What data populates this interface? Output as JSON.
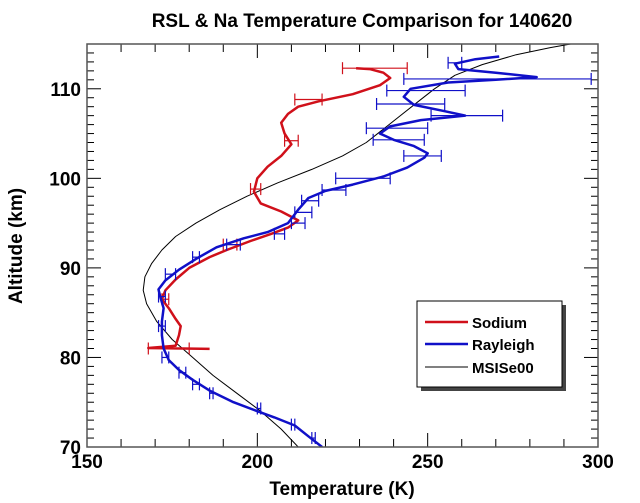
{
  "chart_data": {
    "type": "line",
    "title": "RSL & Na Temperature Comparison for 140620",
    "xlabel": "Temperature (K)",
    "ylabel": "Altitude (km)",
    "xlim": [
      150,
      300
    ],
    "ylim": [
      70,
      115
    ],
    "xticks": [
      150,
      200,
      250,
      300
    ],
    "xtick_labels": [
      "150",
      "200",
      "250",
      "300"
    ],
    "yticks": [
      70,
      80,
      90,
      100,
      110
    ],
    "ytick_labels": [
      "70",
      "80",
      "90",
      "100",
      "110"
    ],
    "x_minor_step": 10,
    "y_minor_step": 1,
    "grid": false,
    "legend": {
      "position": "bottom-right",
      "entries": [
        "Sodium",
        "Rayleigh",
        "MSISe00"
      ]
    },
    "series": [
      {
        "name": "Sodium",
        "color": "#d0101a",
        "points": [
          [
            186,
            80.95
          ],
          [
            178,
            81.0
          ],
          [
            168,
            81.05
          ],
          [
            176,
            81.3
          ],
          [
            177,
            82.5
          ],
          [
            177.5,
            83.5
          ],
          [
            176,
            84.3
          ],
          [
            174,
            85.5
          ],
          [
            172,
            86.5
          ],
          [
            173,
            87.5
          ],
          [
            176,
            88.7
          ],
          [
            180,
            90.0
          ],
          [
            186,
            91.2
          ],
          [
            191,
            92.0
          ],
          [
            198,
            93.0
          ],
          [
            204,
            93.8
          ],
          [
            209,
            94.5
          ],
          [
            212,
            95.3
          ],
          [
            207,
            96.3
          ],
          [
            201,
            97.2
          ],
          [
            199,
            98.5
          ],
          [
            200,
            100.0
          ],
          [
            203,
            101.3
          ],
          [
            207,
            102.5
          ],
          [
            210,
            103.8
          ],
          [
            208,
            105.0
          ],
          [
            207,
            106.2
          ],
          [
            209,
            107.2
          ],
          [
            212,
            108.0
          ],
          [
            218,
            108.6
          ],
          [
            228,
            109.4
          ],
          [
            236,
            110.4
          ],
          [
            239,
            111.2
          ],
          [
            237,
            111.8
          ],
          [
            233,
            112.2
          ],
          [
            229,
            112.3
          ]
        ],
        "error_bars": [
          {
            "alt": 112.3,
            "lo": 225,
            "hi": 244
          },
          {
            "alt": 108.8,
            "lo": 211,
            "hi": 219
          },
          {
            "alt": 104.2,
            "lo": 208,
            "hi": 212
          },
          {
            "alt": 98.8,
            "lo": 198,
            "hi": 201
          },
          {
            "alt": 92.6,
            "lo": 190,
            "hi": 194
          },
          {
            "alt": 86.5,
            "lo": 172,
            "hi": 174
          },
          {
            "alt": 81.0,
            "lo": 168,
            "hi": 180
          }
        ]
      },
      {
        "name": "Rayleigh",
        "color": "#1010c8",
        "points": [
          [
            219,
            70.0
          ],
          [
            215,
            71.2
          ],
          [
            211,
            72.4
          ],
          [
            205,
            73.3
          ],
          [
            200,
            74.0
          ],
          [
            193,
            75.0
          ],
          [
            186,
            76.3
          ],
          [
            181,
            77.5
          ],
          [
            177,
            78.6
          ],
          [
            174,
            79.7
          ],
          [
            172.5,
            81.0
          ],
          [
            172,
            82.5
          ],
          [
            172,
            84.0
          ],
          [
            172.5,
            85.5
          ],
          [
            171.5,
            86.8
          ],
          [
            171,
            87.6
          ],
          [
            173,
            88.6
          ],
          [
            177,
            89.8
          ],
          [
            182,
            91.0
          ],
          [
            188,
            92.3
          ],
          [
            196,
            93.3
          ],
          [
            203,
            94.0
          ],
          [
            209,
            95.0
          ],
          [
            212,
            96.5
          ],
          [
            215,
            97.8
          ],
          [
            220,
            98.6
          ],
          [
            228,
            99.3
          ],
          [
            237,
            100.2
          ],
          [
            244,
            101.2
          ],
          [
            249,
            102.3
          ],
          [
            250,
            102.8
          ],
          [
            246,
            103.6
          ],
          [
            240,
            104.3
          ],
          [
            236,
            105.0
          ],
          [
            239,
            105.8
          ],
          [
            248,
            106.5
          ],
          [
            261,
            107.0
          ],
          [
            255,
            107.5
          ],
          [
            246,
            108.2
          ],
          [
            243,
            109.1
          ],
          [
            245,
            110.0
          ],
          [
            256,
            110.7
          ],
          [
            270,
            111.0
          ],
          [
            282,
            111.3
          ],
          [
            270,
            111.8
          ],
          [
            259,
            112.2
          ],
          [
            258,
            112.8
          ],
          [
            264,
            113.3
          ],
          [
            271,
            113.6
          ]
        ],
        "error_bars": [
          {
            "alt": 111.1,
            "lo": 243,
            "hi": 298
          },
          {
            "alt": 112.9,
            "lo": 256,
            "hi": 260
          },
          {
            "alt": 109.8,
            "lo": 238,
            "hi": 261
          },
          {
            "alt": 108.3,
            "lo": 235,
            "hi": 255
          },
          {
            "alt": 107.0,
            "lo": 251,
            "hi": 272
          },
          {
            "alt": 105.6,
            "lo": 232,
            "hi": 250
          },
          {
            "alt": 104.3,
            "lo": 234,
            "hi": 249
          },
          {
            "alt": 102.5,
            "lo": 243,
            "hi": 254
          },
          {
            "alt": 100.0,
            "lo": 223,
            "hi": 239
          },
          {
            "alt": 98.7,
            "lo": 219,
            "hi": 226
          },
          {
            "alt": 97.5,
            "lo": 213,
            "hi": 218
          },
          {
            "alt": 96.2,
            "lo": 211,
            "hi": 216
          },
          {
            "alt": 95.0,
            "lo": 210,
            "hi": 214
          },
          {
            "alt": 93.8,
            "lo": 205,
            "hi": 208
          },
          {
            "alt": 92.6,
            "lo": 191,
            "hi": 195
          },
          {
            "alt": 91.2,
            "lo": 181,
            "hi": 183
          },
          {
            "alt": 89.3,
            "lo": 173,
            "hi": 176
          },
          {
            "alt": 86.8,
            "lo": 171,
            "hi": 173
          },
          {
            "alt": 83.5,
            "lo": 171,
            "hi": 173
          },
          {
            "alt": 80.0,
            "lo": 172,
            "hi": 174
          },
          {
            "alt": 78.3,
            "lo": 177,
            "hi": 179
          },
          {
            "alt": 77.0,
            "lo": 181,
            "hi": 183
          },
          {
            "alt": 76.0,
            "lo": 186,
            "hi": 187
          },
          {
            "alt": 74.3,
            "lo": 200,
            "hi": 201
          },
          {
            "alt": 72.5,
            "lo": 210,
            "hi": 211
          },
          {
            "alt": 71.0,
            "lo": 216,
            "hi": 217
          }
        ]
      },
      {
        "name": "MSISe00",
        "color": "#000000",
        "points": [
          [
            212,
            70.0
          ],
          [
            207,
            72.0
          ],
          [
            201,
            74.0
          ],
          [
            194,
            76.0
          ],
          [
            187,
            78.0
          ],
          [
            181,
            80.0
          ],
          [
            175,
            82.0
          ],
          [
            170.5,
            84.0
          ],
          [
            167.5,
            86.0
          ],
          [
            166.5,
            87.5
          ],
          [
            167,
            89.0
          ],
          [
            169,
            90.5
          ],
          [
            172,
            92.0
          ],
          [
            176,
            93.5
          ],
          [
            182,
            95.0
          ],
          [
            189,
            96.5
          ],
          [
            197,
            98.0
          ],
          [
            206,
            99.5
          ],
          [
            216,
            101.0
          ],
          [
            225,
            102.5
          ],
          [
            232,
            104.0
          ],
          [
            237,
            105.5
          ],
          [
            242,
            107.0
          ],
          [
            247,
            108.5
          ],
          [
            252,
            110.0
          ],
          [
            258,
            111.5
          ],
          [
            266,
            112.7
          ],
          [
            276,
            113.8
          ],
          [
            286,
            114.6
          ],
          [
            292,
            115.0
          ]
        ]
      }
    ]
  }
}
